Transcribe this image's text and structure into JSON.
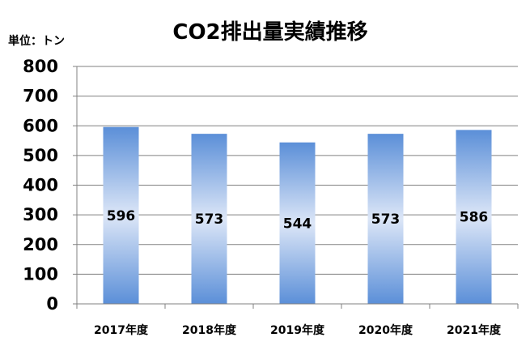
{
  "chart_data": {
    "type": "bar",
    "title": "CO2排出量実績推移",
    "unit_label": "単位：トン",
    "categories": [
      "2017年度",
      "2018年度",
      "2019年度",
      "2020年度",
      "2021年度"
    ],
    "values": [
      596,
      573,
      544,
      573,
      586
    ],
    "data_labels": [
      "596",
      "573",
      "544",
      "573",
      "586"
    ],
    "ylim": [
      0,
      800
    ],
    "yticks": [
      "0",
      "100",
      "200",
      "300",
      "400",
      "500",
      "600",
      "700",
      "800"
    ],
    "grid": true,
    "legend": "none",
    "colors": {
      "bar_edge": "#5b8fd8",
      "bar_center": "#dce6f7",
      "grid": "#808080",
      "axis": "#808080"
    }
  }
}
